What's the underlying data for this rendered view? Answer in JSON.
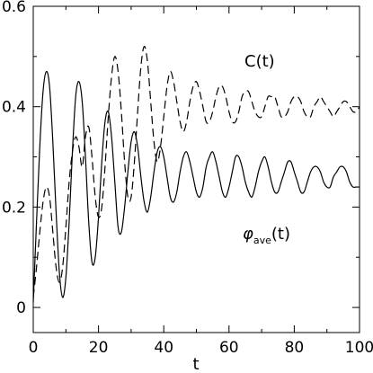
{
  "chart_data": {
    "type": "line",
    "xlabel": "t",
    "ylabel": "",
    "xlim": [
      0,
      100
    ],
    "ylim": [
      -0.05,
      0.6
    ],
    "x_ticks": [
      "0",
      "20",
      "40",
      "60",
      "80",
      "100"
    ],
    "y_ticks": [
      "0",
      "0.2",
      "0.4",
      "0.6"
    ],
    "x_tick_values": [
      0,
      20,
      40,
      60,
      80,
      100
    ],
    "y_tick_values": [
      0,
      0.2,
      0.4,
      0.6
    ],
    "grid": false,
    "annotations": {
      "c_label": "C(t)",
      "phi_label_symbol": "φ",
      "phi_label_sub": "ave",
      "phi_label_rest": "(t)"
    },
    "series": [
      {
        "style": "solid",
        "color": "#000000",
        "x": [
          0,
          1,
          2,
          3,
          4,
          5,
          6,
          7,
          8,
          9,
          10,
          11,
          12,
          13,
          14,
          15,
          16,
          17,
          18,
          19,
          20,
          21,
          22,
          23,
          24,
          25,
          26,
          27,
          28,
          29,
          30,
          31,
          32,
          33,
          34,
          35,
          36,
          37,
          38,
          39,
          40,
          41,
          42,
          43,
          44,
          45,
          46,
          47,
          48,
          49,
          50,
          51,
          52,
          53,
          54,
          55,
          56,
          57,
          58,
          59,
          60,
          61,
          62,
          63,
          64,
          65,
          66,
          67,
          68,
          69,
          70,
          71,
          72,
          73,
          74,
          75,
          76,
          77,
          78,
          79,
          80,
          81,
          82,
          83,
          84,
          85,
          86,
          87,
          88,
          89,
          90,
          91,
          92,
          93,
          94,
          95,
          96,
          97,
          98,
          99,
          100
        ],
        "y": [
          0.01,
          0.17,
          0.32,
          0.43,
          0.47,
          0.44,
          0.33,
          0.19,
          0.07,
          0.02,
          0.06,
          0.17,
          0.31,
          0.42,
          0.45,
          0.41,
          0.3,
          0.17,
          0.09,
          0.1,
          0.18,
          0.29,
          0.37,
          0.39,
          0.34,
          0.25,
          0.16,
          0.15,
          0.2,
          0.27,
          0.33,
          0.35,
          0.32,
          0.26,
          0.21,
          0.19,
          0.22,
          0.27,
          0.31,
          0.32,
          0.3,
          0.26,
          0.22,
          0.21,
          0.23,
          0.27,
          0.3,
          0.31,
          0.29,
          0.26,
          0.23,
          0.22,
          0.24,
          0.28,
          0.3,
          0.31,
          0.29,
          0.26,
          0.23,
          0.22,
          0.24,
          0.27,
          0.3,
          0.3,
          0.28,
          0.25,
          0.23,
          0.22,
          0.24,
          0.27,
          0.29,
          0.3,
          0.28,
          0.25,
          0.23,
          0.23,
          0.25,
          0.27,
          0.29,
          0.29,
          0.27,
          0.25,
          0.23,
          0.23,
          0.25,
          0.27,
          0.28,
          0.28,
          0.27,
          0.25,
          0.24,
          0.24,
          0.26,
          0.27,
          0.28,
          0.28,
          0.27,
          0.25,
          0.24,
          0.24,
          0.24
        ]
      },
      {
        "style": "dashed",
        "color": "#000000",
        "x": [
          0,
          1,
          2,
          3,
          4,
          5,
          6,
          7,
          8,
          9,
          10,
          11,
          12,
          13,
          14,
          15,
          16,
          17,
          18,
          19,
          20,
          21,
          22,
          23,
          24,
          25,
          26,
          27,
          28,
          29,
          30,
          31,
          32,
          33,
          34,
          35,
          36,
          37,
          38,
          39,
          40,
          41,
          42,
          43,
          44,
          45,
          46,
          47,
          48,
          49,
          50,
          51,
          52,
          53,
          54,
          55,
          56,
          57,
          58,
          59,
          60,
          61,
          62,
          63,
          64,
          65,
          66,
          67,
          68,
          69,
          70,
          71,
          72,
          73,
          74,
          75,
          76,
          77,
          78,
          79,
          80,
          81,
          82,
          83,
          84,
          85,
          86,
          87,
          88,
          89,
          90,
          91,
          92,
          93,
          94,
          95,
          96,
          97,
          98,
          99,
          100
        ],
        "y": [
          0.02,
          0.08,
          0.15,
          0.21,
          0.24,
          0.22,
          0.15,
          0.08,
          0.05,
          0.08,
          0.16,
          0.25,
          0.31,
          0.34,
          0.32,
          0.28,
          0.34,
          0.36,
          0.3,
          0.22,
          0.18,
          0.2,
          0.28,
          0.38,
          0.46,
          0.5,
          0.47,
          0.39,
          0.29,
          0.22,
          0.22,
          0.29,
          0.39,
          0.48,
          0.52,
          0.49,
          0.41,
          0.33,
          0.29,
          0.32,
          0.38,
          0.44,
          0.47,
          0.45,
          0.41,
          0.37,
          0.35,
          0.37,
          0.41,
          0.44,
          0.45,
          0.43,
          0.4,
          0.37,
          0.37,
          0.39,
          0.42,
          0.44,
          0.44,
          0.42,
          0.39,
          0.37,
          0.37,
          0.39,
          0.42,
          0.43,
          0.43,
          0.41,
          0.39,
          0.38,
          0.38,
          0.4,
          0.42,
          0.42,
          0.42,
          0.4,
          0.38,
          0.38,
          0.39,
          0.41,
          0.42,
          0.42,
          0.41,
          0.39,
          0.38,
          0.38,
          0.4,
          0.41,
          0.42,
          0.41,
          0.4,
          0.39,
          0.38,
          0.39,
          0.4,
          0.41,
          0.41,
          0.4,
          0.39,
          0.39,
          0.4
        ]
      }
    ]
  }
}
